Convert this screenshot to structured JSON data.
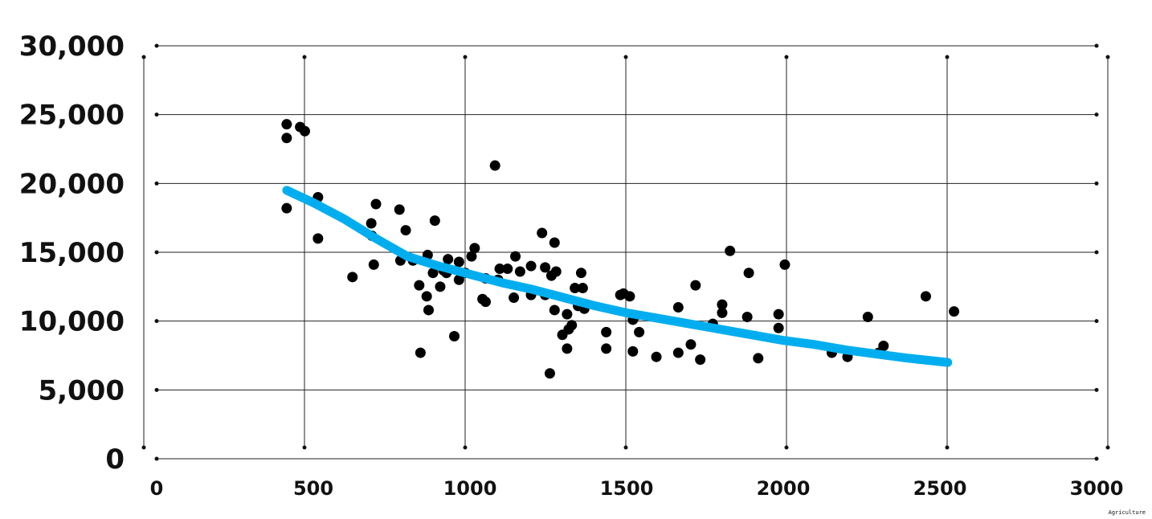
{
  "footer_label": "Agriculture",
  "colors": {
    "points": "#000000",
    "trend": "#00AEEF",
    "grid": "#222222"
  },
  "chart_data": {
    "type": "scatter",
    "title": "",
    "xlabel": "",
    "ylabel": "",
    "xlim": [
      0,
      3000
    ],
    "ylim": [
      0,
      30000
    ],
    "grid": true,
    "x_ticks": [
      0,
      500,
      1000,
      1500,
      2000,
      2500,
      3000
    ],
    "x_tick_labels": [
      "0",
      "500",
      "1000",
      "1500",
      "2000",
      "2500",
      "3000"
    ],
    "y_ticks": [
      0,
      5000,
      10000,
      15000,
      20000,
      25000,
      30000
    ],
    "y_tick_labels": [
      "0",
      "5,000",
      "10,000",
      "15,000",
      "20,000",
      "25,000",
      "30,000"
    ],
    "points": [
      [
        415,
        24300
      ],
      [
        415,
        23300
      ],
      [
        458,
        24100
      ],
      [
        473,
        23800
      ],
      [
        415,
        18200
      ],
      [
        515,
        19000
      ],
      [
        515,
        16000
      ],
      [
        625,
        13200
      ],
      [
        685,
        17100
      ],
      [
        687,
        16200
      ],
      [
        693,
        14100
      ],
      [
        700,
        18500
      ],
      [
        775,
        18100
      ],
      [
        778,
        14400
      ],
      [
        795,
        16600
      ],
      [
        818,
        14400
      ],
      [
        838,
        12600
      ],
      [
        842,
        7700
      ],
      [
        862,
        11800
      ],
      [
        865,
        14800
      ],
      [
        868,
        10800
      ],
      [
        882,
        13500
      ],
      [
        888,
        17300
      ],
      [
        905,
        12500
      ],
      [
        915,
        13700
      ],
      [
        925,
        13500
      ],
      [
        930,
        14500
      ],
      [
        950,
        8900
      ],
      [
        965,
        14300
      ],
      [
        965,
        13000
      ],
      [
        985,
        13500
      ],
      [
        1005,
        14700
      ],
      [
        1015,
        15300
      ],
      [
        1040,
        11600
      ],
      [
        1050,
        11400
      ],
      [
        1050,
        13100
      ],
      [
        1080,
        21300
      ],
      [
        1090,
        13000
      ],
      [
        1095,
        13800
      ],
      [
        1120,
        13800
      ],
      [
        1140,
        11700
      ],
      [
        1145,
        14700
      ],
      [
        1160,
        13600
      ],
      [
        1195,
        14000
      ],
      [
        1195,
        11900
      ],
      [
        1230,
        16400
      ],
      [
        1240,
        13900
      ],
      [
        1240,
        11900
      ],
      [
        1255,
        6200
      ],
      [
        1260,
        13300
      ],
      [
        1270,
        10800
      ],
      [
        1270,
        15700
      ],
      [
        1275,
        13600
      ],
      [
        1295,
        9000
      ],
      [
        1310,
        10500
      ],
      [
        1310,
        8000
      ],
      [
        1315,
        9400
      ],
      [
        1325,
        9700
      ],
      [
        1335,
        12400
      ],
      [
        1345,
        11100
      ],
      [
        1355,
        13500
      ],
      [
        1360,
        12400
      ],
      [
        1365,
        10900
      ],
      [
        1435,
        9200
      ],
      [
        1435,
        8000
      ],
      [
        1480,
        11900
      ],
      [
        1490,
        12000
      ],
      [
        1510,
        11800
      ],
      [
        1520,
        10100
      ],
      [
        1520,
        7800
      ],
      [
        1530,
        10400
      ],
      [
        1540,
        9200
      ],
      [
        1595,
        7400
      ],
      [
        1665,
        11000
      ],
      [
        1665,
        7700
      ],
      [
        1705,
        8300
      ],
      [
        1720,
        12600
      ],
      [
        1735,
        7200
      ],
      [
        1775,
        9800
      ],
      [
        1805,
        10600
      ],
      [
        1805,
        11200
      ],
      [
        1830,
        15100
      ],
      [
        1885,
        10300
      ],
      [
        1890,
        13500
      ],
      [
        1920,
        7300
      ],
      [
        1985,
        10500
      ],
      [
        1985,
        9500
      ],
      [
        2005,
        14100
      ],
      [
        2155,
        7700
      ],
      [
        2205,
        7400
      ],
      [
        2270,
        10300
      ],
      [
        2305,
        7700
      ],
      [
        2320,
        8200
      ],
      [
        2455,
        11800
      ],
      [
        2545,
        10700
      ]
    ],
    "trend_line": [
      [
        415,
        19500
      ],
      [
        500,
        18600
      ],
      [
        600,
        17400
      ],
      [
        700,
        16000
      ],
      [
        800,
        14700
      ],
      [
        900,
        14000
      ],
      [
        1000,
        13400
      ],
      [
        1100,
        12800
      ],
      [
        1200,
        12300
      ],
      [
        1300,
        11700
      ],
      [
        1400,
        11100
      ],
      [
        1500,
        10600
      ],
      [
        1600,
        10200
      ],
      [
        1700,
        9800
      ],
      [
        1800,
        9400
      ],
      [
        1900,
        9000
      ],
      [
        2000,
        8600
      ],
      [
        2100,
        8300
      ],
      [
        2200,
        7900
      ],
      [
        2300,
        7600
      ],
      [
        2400,
        7300
      ],
      [
        2525,
        7000
      ]
    ]
  }
}
